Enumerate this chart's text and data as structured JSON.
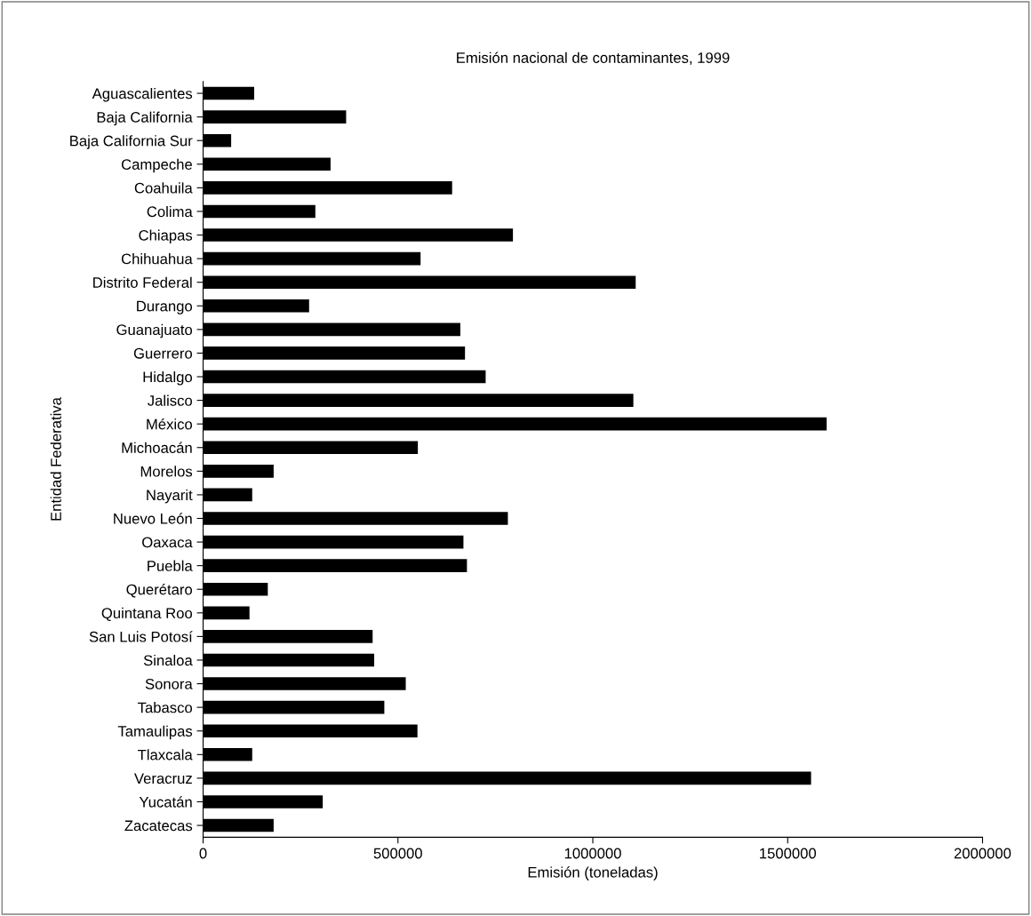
{
  "chart_data": {
    "type": "bar",
    "orientation": "horizontal",
    "title": "Emisión nacional de contaminantes, 1999",
    "xlabel": "Emisión (toneladas)",
    "ylabel": "Entidad Federativa",
    "categories": [
      "Aguascalientes",
      "Baja California",
      "Baja California Sur",
      "Campeche",
      "Coahuila",
      "Colima",
      "Chiapas",
      "Chihuahua",
      "Distrito Federal",
      "Durango",
      "Guanajuato",
      "Guerrero",
      "Hidalgo",
      "Jalisco",
      "México",
      "Michoacán",
      "Morelos",
      "Nayarit",
      "Nuevo León",
      "Oaxaca",
      "Puebla",
      "Querétaro",
      "Quintana Roo",
      "San Luis Potosí",
      "Sinaloa",
      "Sonora",
      "Tabasco",
      "Tamaulipas",
      "Tlaxcala",
      "Veracruz",
      "Yucatán",
      "Zacatecas"
    ],
    "values": [
      131000,
      367000,
      72000,
      327000,
      639000,
      288000,
      795000,
      558000,
      1110000,
      272000,
      660000,
      672000,
      725000,
      1104000,
      1600000,
      551000,
      181000,
      126000,
      782000,
      668000,
      677000,
      166000,
      119000,
      435000,
      439000,
      520000,
      465000,
      550000,
      126000,
      1560000,
      307000,
      181000
    ],
    "color": "#000000",
    "xlim": [
      0,
      2000000
    ],
    "xticks": [
      0,
      500000,
      1000000,
      1500000,
      2000000
    ],
    "grid": false,
    "legend": false
  }
}
